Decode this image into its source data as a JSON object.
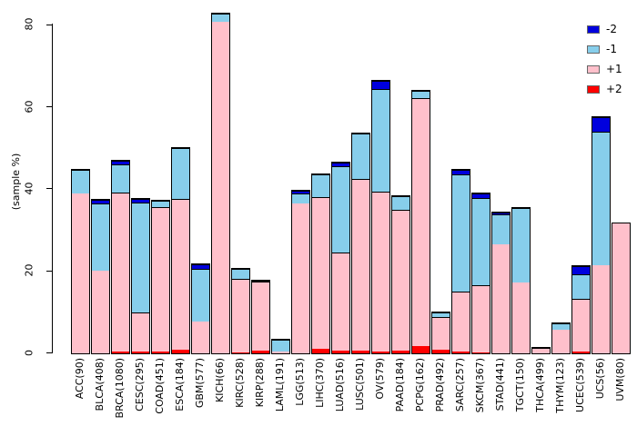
{
  "chart_data": {
    "type": "bar",
    "stacked": true,
    "title": "",
    "xlabel": "",
    "ylabel": "(sample %)",
    "ylim": [
      0,
      80
    ],
    "yticks": [
      0,
      20,
      40,
      60,
      80
    ],
    "grid": false,
    "legend_position": "top-right",
    "categories": [
      "ACC(90)",
      "BLCA(408)",
      "BRCA(1080)",
      "CESC(295)",
      "COAD(451)",
      "ESCA(184)",
      "GBM(577)",
      "KICH(66)",
      "KIRC(528)",
      "KIRP(288)",
      "LAML(191)",
      "LGG(513)",
      "LIHC(370)",
      "LUAD(516)",
      "LUSC(501)",
      "OV(579)",
      "PAAD(184)",
      "PCPG(162)",
      "PRAD(492)",
      "SARC(257)",
      "SKCM(367)",
      "STAD(441)",
      "TGCT(150)",
      "THCA(499)",
      "THYM(123)",
      "UCEC(539)",
      "UCS(56)",
      "UVM(80)"
    ],
    "stack_order_bottom_to_top": [
      "+2",
      "+1",
      "-1",
      "-2"
    ],
    "series": [
      {
        "name": "+2",
        "color": "#ff0000",
        "values": [
          0,
          0,
          0.4,
          0.5,
          0.4,
          0.8,
          0,
          0,
          0.3,
          0.6,
          0,
          0,
          1.0,
          0.6,
          0.7,
          0.5,
          0.6,
          1.8,
          0.8,
          0.4,
          0.3,
          0,
          0,
          0,
          0,
          0.5,
          0,
          0
        ]
      },
      {
        "name": "+1",
        "color": "#ffc0cb",
        "values": [
          39.0,
          20.2,
          38.8,
          9.5,
          35.2,
          36.9,
          7.7,
          80.8,
          17.8,
          16.8,
          0.5,
          36.6,
          37.0,
          23.9,
          41.8,
          39.0,
          34.4,
          60.4,
          8.0,
          14.6,
          16.2,
          26.5,
          17.3,
          1.0,
          5.8,
          12.8,
          21.4,
          31.6
        ]
      },
      {
        "name": "-1",
        "color": "#87ceeb",
        "values": [
          5.7,
          16.3,
          6.8,
          26.8,
          1.5,
          12.4,
          13.0,
          2.0,
          2.5,
          0.4,
          2.8,
          2.3,
          5.6,
          21.2,
          11.1,
          24.9,
          3.3,
          1.8,
          1.2,
          28.6,
          21.3,
          7.4,
          18.2,
          0.4,
          1.6,
          6.0,
          32.6,
          0
        ]
      },
      {
        "name": "-2",
        "color": "#0000dd",
        "values": [
          0,
          0.9,
          0.9,
          0.9,
          0,
          0,
          1.1,
          0,
          0,
          0,
          0,
          0.7,
          0,
          0.9,
          0,
          2.0,
          0,
          0,
          0,
          1.2,
          1.2,
          0.5,
          0,
          0,
          0,
          1.9,
          3.6,
          0
        ]
      }
    ],
    "legend": {
      "entries": [
        {
          "label": "-2",
          "color": "#0000dd"
        },
        {
          "label": "-1",
          "color": "#87ceeb"
        },
        {
          "label": "+1",
          "color": "#ffc0cb"
        },
        {
          "label": "+2",
          "color": "#ff0000"
        }
      ]
    }
  }
}
